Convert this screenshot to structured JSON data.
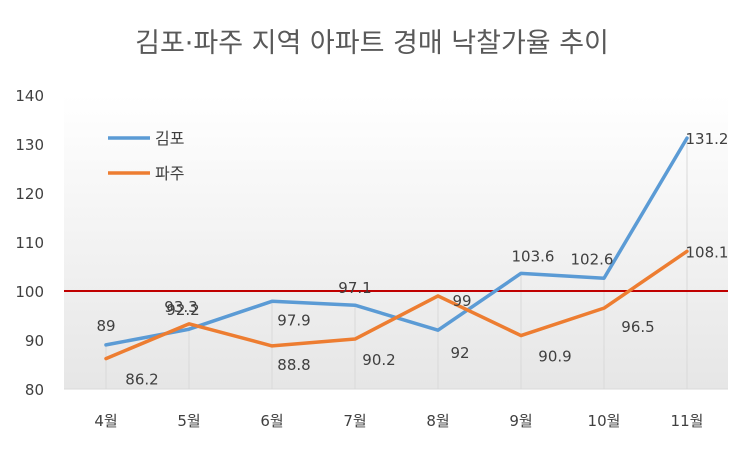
{
  "chart_data": {
    "type": "line",
    "title": "김포·파주 지역 아파트 경매 낙찰가율 추이",
    "categories": [
      "4월",
      "5월",
      "6월",
      "7월",
      "8월",
      "9월",
      "10월",
      "11월"
    ],
    "series": [
      {
        "name": "김포",
        "color": "#5b9bd5",
        "values": [
          89,
          92.2,
          97.9,
          97.1,
          92,
          103.6,
          102.6,
          131.2
        ]
      },
      {
        "name": "파주",
        "color": "#ed7d31",
        "values": [
          86.2,
          93.3,
          88.8,
          90.2,
          99,
          90.9,
          96.5,
          108.1
        ]
      }
    ],
    "ylim": [
      80,
      140
    ],
    "yticks": [
      80,
      90,
      100,
      110,
      120,
      130,
      140
    ],
    "reference_line": {
      "value": 100,
      "color": "#c00000"
    },
    "legend_position": "top-left",
    "grid": "vertical drop lines",
    "background": "light gray gradient"
  }
}
